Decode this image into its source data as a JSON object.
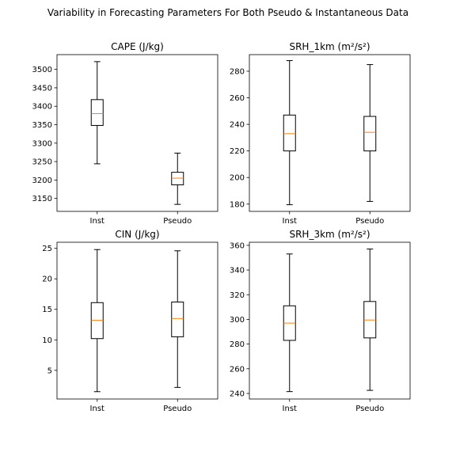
{
  "figure": {
    "title": "Variability in Forecasting Parameters For Both Pseudo & Instantaneous Data"
  },
  "colors": {
    "median": "#ff7f0e",
    "box": "#000000",
    "axes": "#000000"
  },
  "chart_data": [
    {
      "type": "box",
      "title": "CAPE (J/kg)",
      "categories": [
        "Inst",
        "Pseudo"
      ],
      "ylim": [
        3115,
        3540
      ],
      "yticks": [
        3150,
        3200,
        3250,
        3300,
        3350,
        3400,
        3450,
        3500
      ],
      "boxes": [
        {
          "whisker_low": 3244,
          "q1": 3348,
          "median": 3380,
          "q3": 3418,
          "whisker_high": 3521
        },
        {
          "whisker_low": 3134,
          "q1": 3187,
          "median": 3205,
          "q3": 3221,
          "whisker_high": 3273
        }
      ]
    },
    {
      "type": "box",
      "title": "SRH_1km (m²/s²)",
      "categories": [
        "Inst",
        "Pseudo"
      ],
      "ylim": [
        174.5,
        292.5
      ],
      "yticks": [
        180,
        200,
        220,
        240,
        260,
        280
      ],
      "boxes": [
        {
          "whisker_low": 179.5,
          "q1": 220,
          "median": 233,
          "q3": 247,
          "whisker_high": 288
        },
        {
          "whisker_low": 182,
          "q1": 220,
          "median": 234,
          "q3": 246,
          "whisker_high": 285
        }
      ]
    },
    {
      "type": "box",
      "title": "CIN (J/kg)",
      "categories": [
        "Inst",
        "Pseudo"
      ],
      "ylim": [
        0.3,
        26.0
      ],
      "yticks": [
        5,
        10,
        15,
        20,
        25
      ],
      "boxes": [
        {
          "whisker_low": 1.5,
          "q1": 10.2,
          "median": 13.2,
          "q3": 16.1,
          "whisker_high": 24.8
        },
        {
          "whisker_low": 2.2,
          "q1": 10.5,
          "median": 13.5,
          "q3": 16.2,
          "whisker_high": 24.6
        }
      ]
    },
    {
      "type": "box",
      "title": "SRH_3km (m²/s²)",
      "categories": [
        "Inst",
        "Pseudo"
      ],
      "ylim": [
        235.5,
        362.5
      ],
      "yticks": [
        240,
        260,
        280,
        300,
        320,
        340,
        360
      ],
      "boxes": [
        {
          "whisker_low": 241.5,
          "q1": 283,
          "median": 297,
          "q3": 311,
          "whisker_high": 353
        },
        {
          "whisker_low": 242.5,
          "q1": 285,
          "median": 299.5,
          "q3": 314.5,
          "whisker_high": 357
        }
      ]
    }
  ]
}
